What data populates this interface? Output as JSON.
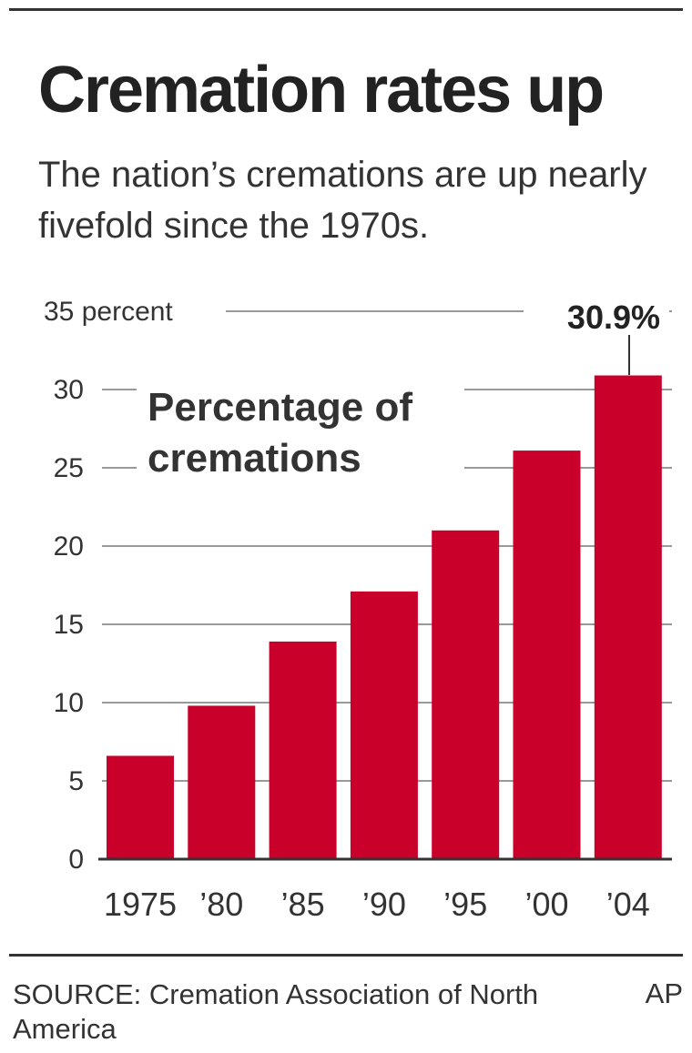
{
  "title": "Cremation rates up",
  "subtitle": "The nation’s cremations are up nearly fivefold since the 1970s.",
  "source": "SOURCE: Cremation Association of North America",
  "credit": "AP",
  "colors": {
    "bar": "#c8002a",
    "grid": "#999999",
    "text": "#333333"
  },
  "chart_data": {
    "type": "bar",
    "title": "Cremation rates up",
    "subtitle": "The nation’s cremations are up nearly fivefold since the 1970s.",
    "annotation": "Percentage of cremations",
    "categories": [
      "1975",
      "’80",
      "’85",
      "’90",
      "’95",
      "’00",
      "’04"
    ],
    "values": [
      6.6,
      9.8,
      13.9,
      17.1,
      21.0,
      26.1,
      30.9
    ],
    "callout": {
      "category": "’04",
      "label": "30.9%"
    },
    "yticks": [
      "0",
      "5",
      "10",
      "15",
      "20",
      "25",
      "30",
      "35 percent"
    ],
    "ytick_values": [
      0,
      5,
      10,
      15,
      20,
      25,
      30,
      35
    ],
    "ylim": [
      0,
      35
    ],
    "grid": true,
    "legend": "none"
  }
}
